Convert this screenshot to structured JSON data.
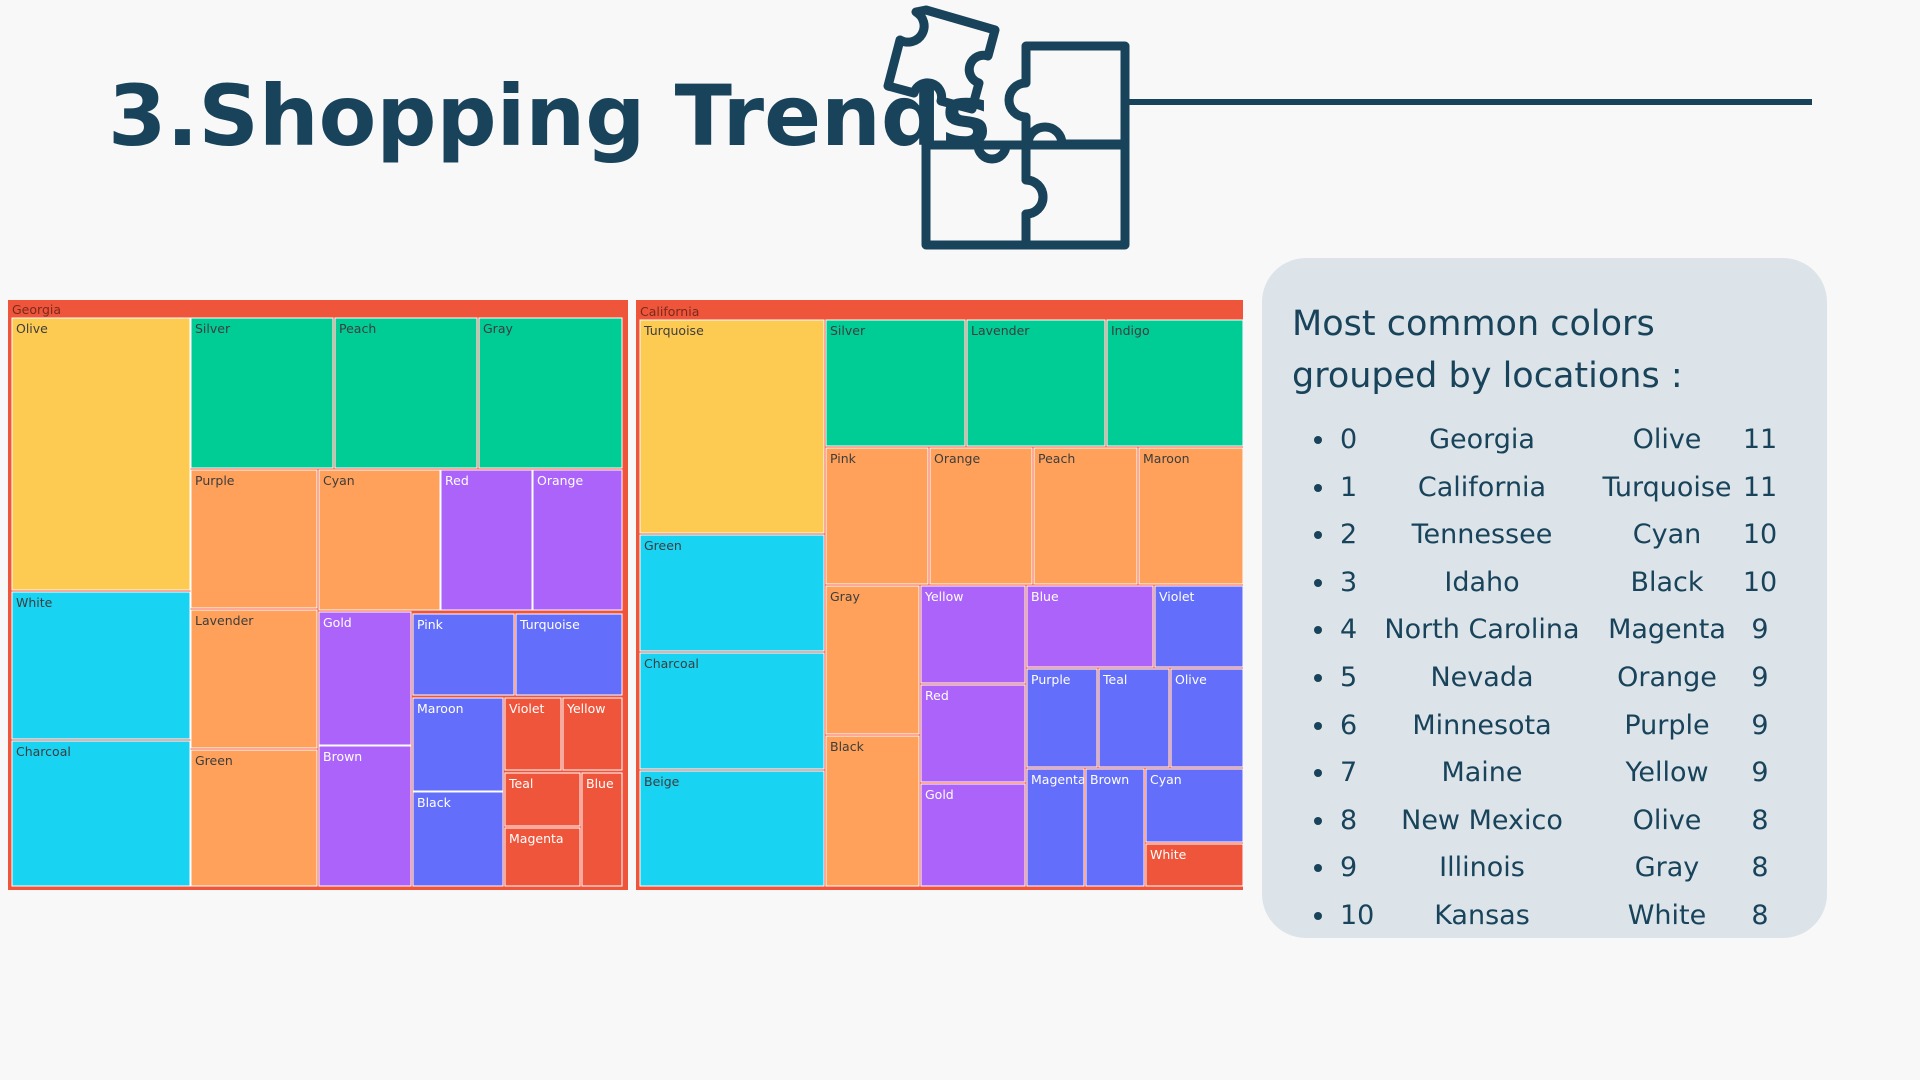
{
  "page": {
    "title": "3.Shopping Trends"
  },
  "colors": {
    "primary": "#18435a",
    "yellow": "#fecb52",
    "green": "#00cc96",
    "orange": "#ffa15a",
    "purple": "#ab63fa",
    "cyan": "#19d3f3",
    "blue": "#636efa",
    "red": "#ef553b",
    "panel_bg": "#dce4e9"
  },
  "panel": {
    "title": "Most common colors grouped by locations :",
    "rows": [
      {
        "index": "0",
        "location": "Georgia",
        "color": "Olive",
        "count": "11"
      },
      {
        "index": "1",
        "location": "California",
        "color": "Turquoise",
        "count": "11"
      },
      {
        "index": "2",
        "location": "Tennessee",
        "color": "Cyan",
        "count": "10"
      },
      {
        "index": "3",
        "location": "Idaho",
        "color": "Black",
        "count": "10"
      },
      {
        "index": "4",
        "location": "North Carolina",
        "color": "Magenta",
        "count": "9"
      },
      {
        "index": "5",
        "location": "Nevada",
        "color": "Orange",
        "count": "9"
      },
      {
        "index": "6",
        "location": "Minnesota",
        "color": "Purple",
        "count": "9"
      },
      {
        "index": "7",
        "location": "Maine",
        "color": "Yellow",
        "count": "9"
      },
      {
        "index": "8",
        "location": "New Mexico",
        "color": "Olive",
        "count": "8"
      },
      {
        "index": "9",
        "location": "Illinois",
        "color": "Gray",
        "count": "8"
      },
      {
        "index": "10",
        "location": "Kansas",
        "color": "White",
        "count": "8"
      }
    ]
  },
  "chart_data": [
    {
      "type": "treemap",
      "title": "Georgia",
      "parent_color": "#ef553b",
      "tiles": [
        {
          "name": "Olive",
          "value": 11,
          "color": "#fecb52"
        },
        {
          "name": "White",
          "value": 9,
          "color": "#19d3f3"
        },
        {
          "name": "Charcoal",
          "value": 9,
          "color": "#19d3f3"
        },
        {
          "name": "Silver",
          "value": 5,
          "color": "#00cc96"
        },
        {
          "name": "Peach",
          "value": 5,
          "color": "#00cc96"
        },
        {
          "name": "Gray",
          "value": 5,
          "color": "#00cc96"
        },
        {
          "name": "Purple",
          "value": 4,
          "color": "#ffa15a"
        },
        {
          "name": "Lavender",
          "value": 4,
          "color": "#ffa15a"
        },
        {
          "name": "Green",
          "value": 4,
          "color": "#ffa15a"
        },
        {
          "name": "Cyan",
          "value": 4,
          "color": "#ffa15a"
        },
        {
          "name": "Red",
          "value": 3,
          "color": "#ab63fa"
        },
        {
          "name": "Orange",
          "value": 3,
          "color": "#ab63fa"
        },
        {
          "name": "Gold",
          "value": 3,
          "color": "#ab63fa"
        },
        {
          "name": "Brown",
          "value": 3,
          "color": "#ab63fa"
        },
        {
          "name": "Pink",
          "value": 2,
          "color": "#636efa"
        },
        {
          "name": "Turquoise",
          "value": 2,
          "color": "#636efa"
        },
        {
          "name": "Maroon",
          "value": 2,
          "color": "#636efa"
        },
        {
          "name": "Black",
          "value": 2,
          "color": "#636efa"
        },
        {
          "name": "Violet",
          "value": 1,
          "color": "#ef553b"
        },
        {
          "name": "Yellow",
          "value": 1,
          "color": "#ef553b"
        },
        {
          "name": "Teal",
          "value": 1,
          "color": "#ef553b"
        },
        {
          "name": "Magenta",
          "value": 1,
          "color": "#ef553b"
        },
        {
          "name": "Blue",
          "value": 1,
          "color": "#ef553b"
        }
      ]
    },
    {
      "type": "treemap",
      "title": "California",
      "parent_color": "#ef553b",
      "tiles": [
        {
          "name": "Turquoise",
          "value": 11,
          "color": "#fecb52"
        },
        {
          "name": "Green",
          "value": 6,
          "color": "#19d3f3"
        },
        {
          "name": "Charcoal",
          "value": 6,
          "color": "#19d3f3"
        },
        {
          "name": "Beige",
          "value": 6,
          "color": "#19d3f3"
        },
        {
          "name": "Silver",
          "value": 5,
          "color": "#00cc96"
        },
        {
          "name": "Lavender",
          "value": 5,
          "color": "#00cc96"
        },
        {
          "name": "Indigo",
          "value": 5,
          "color": "#00cc96"
        },
        {
          "name": "Pink",
          "value": 4,
          "color": "#ffa15a"
        },
        {
          "name": "Orange",
          "value": 4,
          "color": "#ffa15a"
        },
        {
          "name": "Peach",
          "value": 4,
          "color": "#ffa15a"
        },
        {
          "name": "Maroon",
          "value": 4,
          "color": "#ffa15a"
        },
        {
          "name": "Gray",
          "value": 4,
          "color": "#ffa15a"
        },
        {
          "name": "Black",
          "value": 4,
          "color": "#ffa15a"
        },
        {
          "name": "Yellow",
          "value": 3,
          "color": "#ab63fa"
        },
        {
          "name": "Red",
          "value": 3,
          "color": "#ab63fa"
        },
        {
          "name": "Gold",
          "value": 3,
          "color": "#ab63fa"
        },
        {
          "name": "Blue",
          "value": 3,
          "color": "#ab63fa"
        },
        {
          "name": "Violet",
          "value": 2,
          "color": "#636efa"
        },
        {
          "name": "Purple",
          "value": 2,
          "color": "#636efa"
        },
        {
          "name": "Teal",
          "value": 2,
          "color": "#636efa"
        },
        {
          "name": "Olive",
          "value": 2,
          "color": "#636efa"
        },
        {
          "name": "Magenta",
          "value": 2,
          "color": "#636efa"
        },
        {
          "name": "Brown",
          "value": 2,
          "color": "#636efa"
        },
        {
          "name": "Cyan",
          "value": 2,
          "color": "#636efa"
        },
        {
          "name": "White",
          "value": 1,
          "color": "#ef553b"
        }
      ]
    }
  ]
}
